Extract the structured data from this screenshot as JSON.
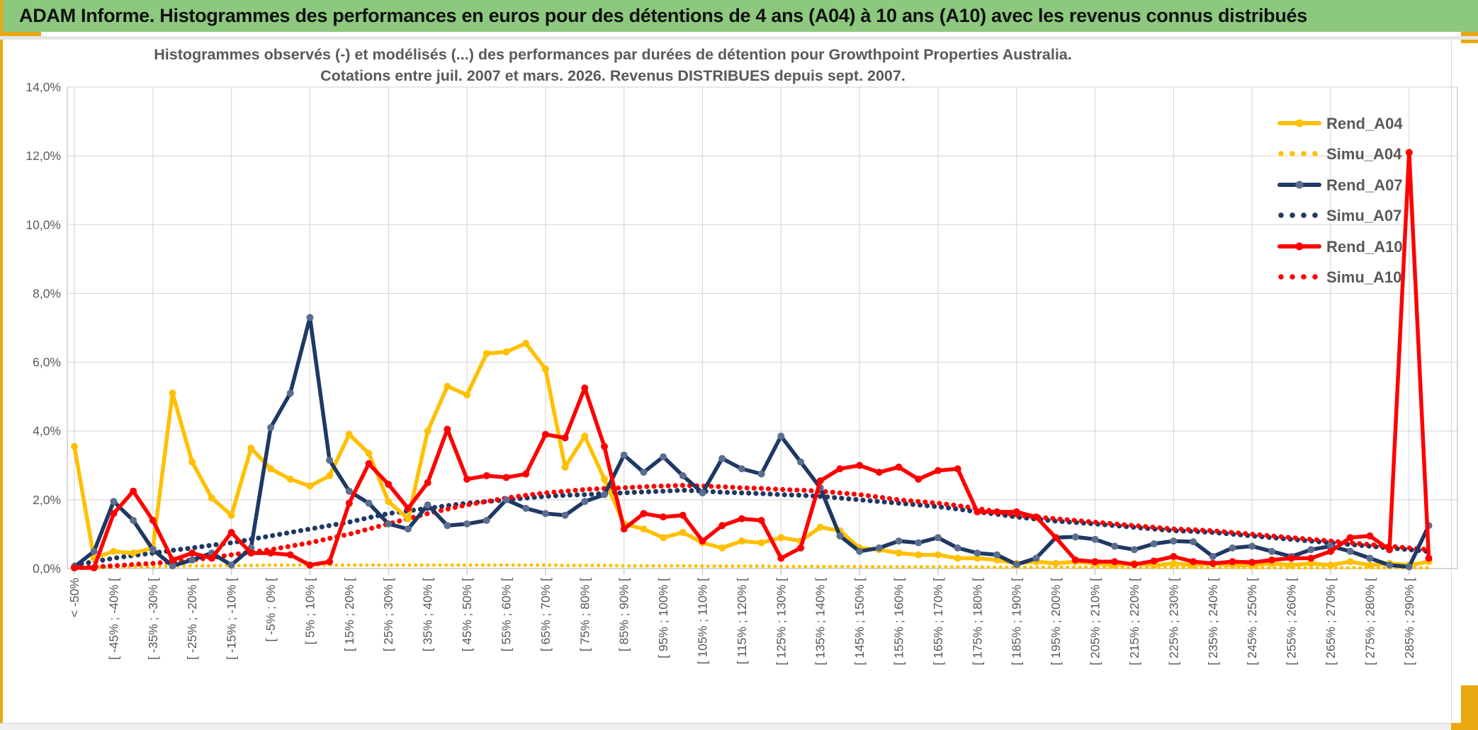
{
  "banner": {
    "title": "ADAM Informe. Histogrammes des performances en euros pour des détentions de 4 ans (A04) à 10 ans (A10) avec les revenus connus distribués"
  },
  "chart": {
    "title_line1": "Histogrammes observés (-) et modélisés (...) des performances par durées de détention pour Growthpoint Properties Australia.",
    "title_line2": "Cotations entre juil. 2007 et mars. 2026. Revenus DISTRIBUES depuis sept. 2007."
  },
  "colors": {
    "banner_green": "#8CC87E",
    "accent_gold": "#E9A812",
    "grid": "#D9D9D9",
    "axis": "#BFBFBF",
    "text_gray": "#595959",
    "series_yellow": "#FFC000",
    "series_navy": "#1F3864",
    "series_navy_marker": "#5B6E8F",
    "series_red": "#FF0000"
  },
  "legend": [
    {
      "label": "Rend_A04",
      "style": "solid",
      "color": "#FFC000",
      "marker_color": "#FFC000"
    },
    {
      "label": "Simu_A04",
      "style": "dotted",
      "color": "#FFC000",
      "marker_color": "#FFC000"
    },
    {
      "label": "Rend_A07",
      "style": "solid",
      "color": "#1F3864",
      "marker_color": "#5B6E8F"
    },
    {
      "label": "Simu_A07",
      "style": "dotted",
      "color": "#1F3864",
      "marker_color": "#1F3864"
    },
    {
      "label": "Rend_A10",
      "style": "solid",
      "color": "#FF0000",
      "marker_color": "#FF0000"
    },
    {
      "label": "Simu_A10",
      "style": "dotted",
      "color": "#FF0000",
      "marker_color": "#FF0000"
    }
  ],
  "chart_data": {
    "type": "line",
    "title": "Histogrammes observés (-) et modélisés (...) des performances par durées de détention pour Growthpoint Properties Australia. Cotations entre juil. 2007 et mars. 2026. Revenus DISTRIBUES depuis sept. 2007.",
    "ylabel": "",
    "xlabel": "",
    "ylim": [
      0,
      14
    ],
    "grid": true,
    "legend_position": "right",
    "y_ticks": [
      "0,0%",
      "2,0%",
      "4,0%",
      "6,0%",
      "8,0%",
      "10,0%",
      "12,0%",
      "14,0%"
    ],
    "x_tick_labels": [
      "< -50%",
      "[ -45% ; -40% [",
      "[ -35% ; -30% [",
      "[ -25% ; -20% [",
      "[ -15% ; -10% [",
      "[ -5% ; 0% [",
      "[ 5% ; 10% [",
      "[ 15% ; 20% [",
      "[ 25% ; 30% [",
      "[ 35% ; 40% [",
      "[ 45% ; 50% [",
      "[ 55% ; 60% [",
      "[ 65% ; 70% [",
      "[ 75% ; 80% [",
      "[ 85% ; 90% [",
      "[ 95% ; 100% [",
      "[ 105% ; 110% [",
      "[ 115% ; 120% [",
      "[ 125% ; 130% [",
      "[ 135% ; 140% [",
      "[ 145% ; 150% [",
      "[ 155% ; 160% [",
      "[ 165% ; 170% [",
      "[ 175% ; 180% [",
      "[ 185% ; 190% [",
      "[ 195% ; 200% [",
      "[ 205% ; 210% [",
      "[ 215% ; 220% [",
      "[ 225% ; 230% [",
      "[ 235% ; 240% [",
      "[ 245% ; 250% [",
      "[ 255% ; 260% [",
      "[ 265% ; 270% [",
      "[ 275% ; 280% [",
      "[ 285% ; 290% ["
    ],
    "x_note": "35 labels shown on every other of 70 five-percent bins",
    "series": [
      {
        "name": "Rend_A04",
        "style": "solid",
        "color": "#FFC000",
        "marker_color": "#FFC000",
        "values": [
          3.55,
          0.3,
          0.5,
          0.45,
          0.6,
          5.1,
          3.1,
          2.05,
          1.55,
          3.5,
          2.9,
          2.6,
          2.4,
          2.7,
          3.9,
          3.35,
          1.95,
          1.45,
          4.0,
          5.3,
          5.05,
          6.25,
          6.3,
          6.55,
          5.8,
          2.95,
          3.85,
          2.6,
          1.3,
          1.15,
          0.9,
          1.05,
          0.75,
          0.6,
          0.8,
          0.75,
          0.9,
          0.8,
          1.2,
          1.1,
          0.6,
          0.55,
          0.45,
          0.4,
          0.4,
          0.3,
          0.3,
          0.25,
          0.15,
          0.2,
          0.15,
          0.2,
          0.15,
          0.1,
          0.15,
          0.1,
          0.15,
          0.1,
          0.15,
          0.1,
          0.1,
          0.15,
          0.1,
          0.15,
          0.1,
          0.2,
          0.1,
          0.15,
          0.1,
          0.2
        ]
      },
      {
        "name": "Simu_A04",
        "style": "dotted",
        "color": "#FFC000",
        "marker_color": "#FFC000",
        "values": [
          0.02,
          0.03,
          0.04,
          0.05,
          0.06,
          0.07,
          0.08,
          0.08,
          0.09,
          0.09,
          0.1,
          0.1,
          0.1,
          0.1,
          0.1,
          0.1,
          0.1,
          0.1,
          0.1,
          0.1,
          0.1,
          0.1,
          0.1,
          0.1,
          0.1,
          0.09,
          0.09,
          0.09,
          0.08,
          0.08,
          0.08,
          0.08,
          0.07,
          0.07,
          0.07,
          0.07,
          0.06,
          0.06,
          0.06,
          0.06,
          0.06,
          0.05,
          0.05,
          0.05,
          0.05,
          0.05,
          0.05,
          0.04,
          0.04,
          0.04,
          0.04,
          0.04,
          0.04,
          0.03,
          0.03,
          0.03,
          0.03,
          0.03,
          0.03,
          0.03,
          0.02,
          0.02,
          0.02,
          0.02,
          0.02,
          0.02,
          0.02,
          0.02,
          0.02,
          0.02
        ]
      },
      {
        "name": "Rend_A07",
        "style": "solid",
        "color": "#1F3864",
        "marker_color": "#5B6E8F",
        "values": [
          0.05,
          0.5,
          1.95,
          1.4,
          0.55,
          0.08,
          0.25,
          0.45,
          0.1,
          0.6,
          4.1,
          5.1,
          7.3,
          3.15,
          2.25,
          1.9,
          1.3,
          1.15,
          1.85,
          1.25,
          1.3,
          1.4,
          2.0,
          1.75,
          1.6,
          1.55,
          1.95,
          2.15,
          3.3,
          2.8,
          3.25,
          2.7,
          2.2,
          3.2,
          2.9,
          2.75,
          3.85,
          3.1,
          2.35,
          0.95,
          0.5,
          0.6,
          0.8,
          0.75,
          0.9,
          0.6,
          0.45,
          0.4,
          0.12,
          0.3,
          0.9,
          0.92,
          0.85,
          0.65,
          0.55,
          0.72,
          0.8,
          0.78,
          0.35,
          0.6,
          0.65,
          0.5,
          0.35,
          0.55,
          0.65,
          0.5,
          0.3,
          0.1,
          0.05,
          1.25
        ]
      },
      {
        "name": "Simu_A07",
        "style": "dotted",
        "color": "#1F3864",
        "marker_color": "#1F3864",
        "values": [
          0.1,
          0.2,
          0.3,
          0.38,
          0.45,
          0.53,
          0.6,
          0.68,
          0.75,
          0.85,
          0.95,
          1.05,
          1.15,
          1.25,
          1.35,
          1.48,
          1.6,
          1.68,
          1.75,
          1.83,
          1.9,
          1.95,
          2.0,
          2.05,
          2.1,
          2.13,
          2.15,
          2.18,
          2.2,
          2.23,
          2.25,
          2.28,
          2.25,
          2.22,
          2.2,
          2.18,
          2.15,
          2.13,
          2.1,
          2.05,
          2.0,
          1.95,
          1.9,
          1.85,
          1.8,
          1.73,
          1.65,
          1.58,
          1.5,
          1.44,
          1.38,
          1.34,
          1.3,
          1.25,
          1.2,
          1.15,
          1.1,
          1.08,
          1.05,
          1.0,
          0.95,
          0.9,
          0.85,
          0.8,
          0.75,
          0.7,
          0.65,
          0.6,
          0.55,
          0.5
        ]
      },
      {
        "name": "Rend_A10",
        "style": "solid",
        "color": "#FF0000",
        "marker_color": "#FF0000",
        "values": [
          0.02,
          0.02,
          1.6,
          2.25,
          1.4,
          0.25,
          0.45,
          0.3,
          1.05,
          0.45,
          0.45,
          0.4,
          0.1,
          0.2,
          1.9,
          3.05,
          2.45,
          1.75,
          2.5,
          4.05,
          2.6,
          2.7,
          2.65,
          2.75,
          3.9,
          3.8,
          5.25,
          3.55,
          1.15,
          1.6,
          1.5,
          1.55,
          0.8,
          1.25,
          1.45,
          1.4,
          0.3,
          0.6,
          2.55,
          2.9,
          3.0,
          2.8,
          2.95,
          2.6,
          2.85,
          2.9,
          1.65,
          1.65,
          1.65,
          1.5,
          0.9,
          0.25,
          0.2,
          0.2,
          0.12,
          0.22,
          0.35,
          0.2,
          0.15,
          0.2,
          0.18,
          0.25,
          0.3,
          0.3,
          0.5,
          0.9,
          0.95,
          0.55,
          12.1,
          0.3
        ]
      },
      {
        "name": "Simu_A10",
        "style": "dotted",
        "color": "#FF0000",
        "marker_color": "#FF0000",
        "values": [
          0.02,
          0.05,
          0.08,
          0.12,
          0.15,
          0.2,
          0.25,
          0.32,
          0.4,
          0.48,
          0.55,
          0.65,
          0.75,
          0.88,
          1.0,
          1.15,
          1.3,
          1.45,
          1.6,
          1.73,
          1.85,
          1.95,
          2.05,
          2.13,
          2.2,
          2.25,
          2.3,
          2.33,
          2.35,
          2.38,
          2.4,
          2.42,
          2.4,
          2.38,
          2.35,
          2.33,
          2.3,
          2.28,
          2.25,
          2.2,
          2.15,
          2.08,
          2.0,
          1.95,
          1.9,
          1.83,
          1.75,
          1.65,
          1.55,
          1.5,
          1.45,
          1.4,
          1.35,
          1.3,
          1.25,
          1.2,
          1.15,
          1.13,
          1.1,
          1.05,
          1.0,
          0.95,
          0.9,
          0.85,
          0.8,
          0.75,
          0.7,
          0.65,
          0.6,
          0.55
        ]
      }
    ]
  }
}
